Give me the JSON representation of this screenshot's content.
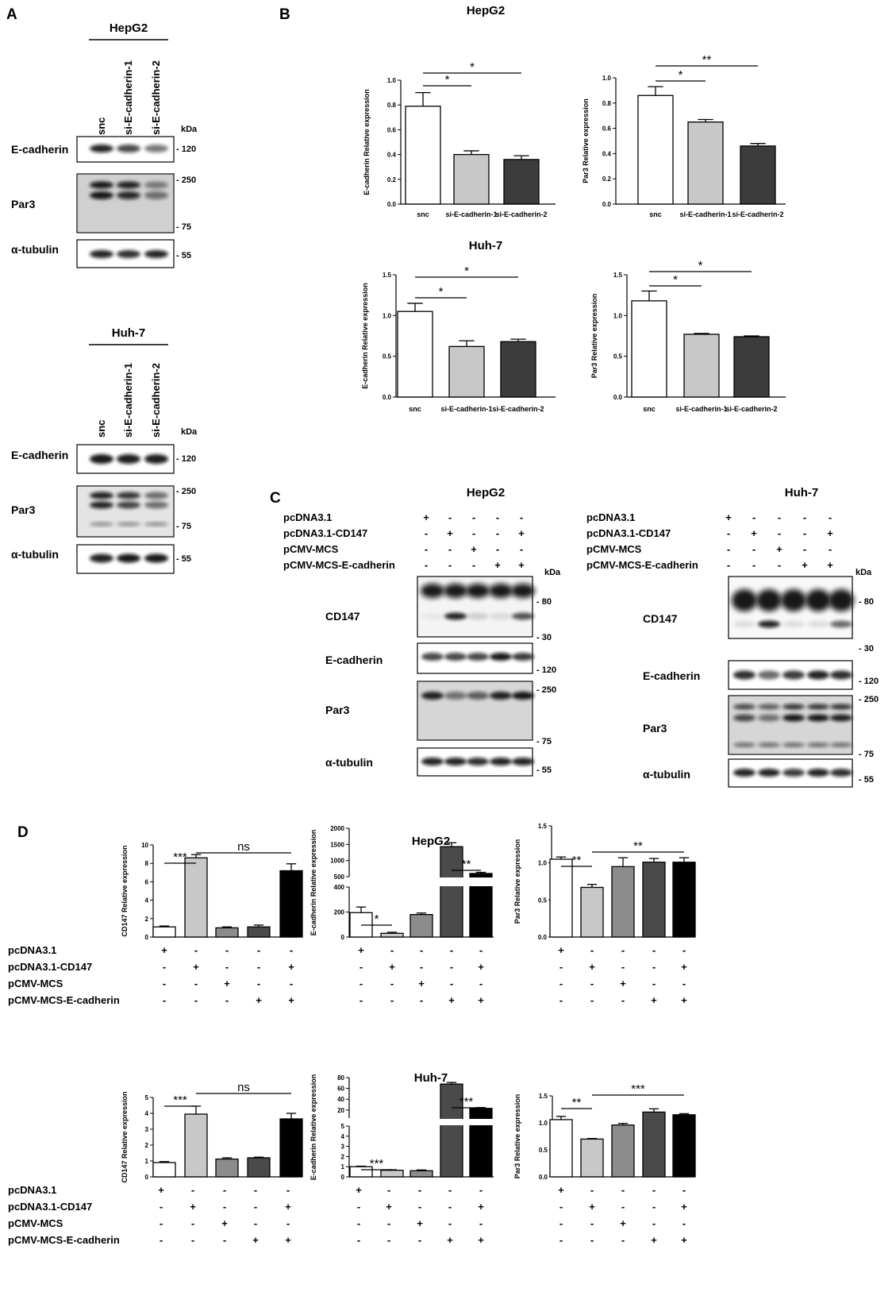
{
  "panel_labels": {
    "A": "A",
    "B": "B",
    "C": "C",
    "D": "D"
  },
  "kda_label": "kDa",
  "panel_a": {
    "hepg2": {
      "cell_line": "HepG2",
      "lanes": [
        "snc",
        "si-E-cadherin-1",
        "si-E-cadherin-2"
      ],
      "rows": [
        {
          "label": "E-cadherin",
          "markers": [
            "- 120"
          ]
        },
        {
          "label": "Par3",
          "markers": [
            "- 250",
            "- 75"
          ]
        },
        {
          "label": "α-tubulin",
          "markers": [
            "- 55"
          ]
        }
      ]
    },
    "huh7": {
      "cell_line": "Huh-7",
      "lanes": [
        "snc",
        "si-E-cadherin-1",
        "si-E-cadherin-2"
      ],
      "rows": [
        {
          "label": "E-cadherin",
          "markers": [
            "- 120"
          ]
        },
        {
          "label": "Par3",
          "markers": [
            "- 250",
            "- 75"
          ]
        },
        {
          "label": "α-tubulin",
          "markers": [
            "- 55"
          ]
        }
      ]
    }
  },
  "panel_b": {
    "hepg2_title": "HepG2",
    "huh7_title": "Huh-7"
  },
  "panel_c": {
    "conditions": [
      "pcDNA3.1",
      "pcDNA3.1-CD147",
      "pCMV-MCS",
      "pCMV-MCS-E-cadherin"
    ],
    "signs": [
      [
        "+",
        "-",
        "-",
        "-",
        "-"
      ],
      [
        "-",
        "+",
        "-",
        "-",
        "+"
      ],
      [
        "-",
        "-",
        "+",
        "-",
        "-"
      ],
      [
        "-",
        "-",
        "-",
        "+",
        "+"
      ]
    ],
    "hepg2": {
      "cell_line": "HepG2",
      "rows": [
        {
          "label": "CD147",
          "markers": [
            "- 80",
            "- 30"
          ]
        },
        {
          "label": "E-cadherin",
          "markers": [
            "- 120"
          ]
        },
        {
          "label": "Par3",
          "markers": [
            "- 250",
            "- 75"
          ]
        },
        {
          "label": "α-tubulin",
          "markers": [
            "- 55"
          ]
        }
      ]
    },
    "huh7": {
      "cell_line": "Huh-7",
      "rows": [
        {
          "label": "CD147",
          "markers": [
            "- 80",
            "- 30"
          ]
        },
        {
          "label": "E-cadherin",
          "markers": [
            "- 120"
          ]
        },
        {
          "label": "Par3",
          "markers": [
            "- 250",
            "- 75"
          ]
        },
        {
          "label": "α-tubulin",
          "markers": [
            "- 55"
          ]
        }
      ]
    }
  },
  "panel_d": {
    "hepg2_title": "HepG2",
    "huh7_title": "Huh-7",
    "conditions": [
      "pcDNA3.1",
      "pcDNA3.1-CD147",
      "pCMV-MCS",
      "pCMV-MCS-E-cadherin"
    ],
    "signs": [
      [
        "+",
        "-",
        "-",
        "-",
        "-"
      ],
      [
        "-",
        "+",
        "-",
        "-",
        "+"
      ],
      [
        "-",
        "-",
        "+",
        "-",
        "-"
      ],
      [
        "-",
        "-",
        "-",
        "+",
        "+"
      ]
    ]
  },
  "chart_data": [
    {
      "type": "bar",
      "panel": "B",
      "cell_line": "HepG2",
      "categories": [
        "snc",
        "si-E-cadherin-1",
        "si-E-cadherin-2"
      ],
      "values": [
        0.79,
        0.4,
        0.36
      ],
      "errors": [
        0.11,
        0.03,
        0.03
      ],
      "colors": [
        "#ffffff",
        "#c8c8c8",
        "#3c3c3c"
      ],
      "ylabel": "E-cadherin Relative expression",
      "ylim": [
        0,
        1.0
      ],
      "yticks": [
        "0.0",
        "0.2",
        "0.4",
        "0.6",
        "0.8",
        "1.0"
      ],
      "significance": [
        {
          "from": 0,
          "to": 1,
          "label": "*"
        },
        {
          "from": 0,
          "to": 2,
          "label": "*"
        }
      ]
    },
    {
      "type": "bar",
      "panel": "B",
      "cell_line": "HepG2",
      "categories": [
        "snc",
        "si-E-cadherin-1",
        "si-E-cadherin-2"
      ],
      "values": [
        0.86,
        0.65,
        0.46
      ],
      "errors": [
        0.07,
        0.02,
        0.02
      ],
      "colors": [
        "#ffffff",
        "#c8c8c8",
        "#3c3c3c"
      ],
      "ylabel": "Par3 Relative expression",
      "ylim": [
        0,
        1.0
      ],
      "yticks": [
        "0.0",
        "0.2",
        "0.4",
        "0.6",
        "0.8",
        "1.0"
      ],
      "significance": [
        {
          "from": 0,
          "to": 1,
          "label": "*"
        },
        {
          "from": 0,
          "to": 2,
          "label": "**"
        }
      ]
    },
    {
      "type": "bar",
      "panel": "B",
      "cell_line": "Huh-7",
      "categories": [
        "snc",
        "si-E-cadherin-1",
        "si-E-cadherin-2"
      ],
      "values": [
        1.05,
        0.62,
        0.68
      ],
      "errors": [
        0.1,
        0.07,
        0.03
      ],
      "colors": [
        "#ffffff",
        "#c8c8c8",
        "#3c3c3c"
      ],
      "ylabel": "E-cadherin Relative expression",
      "ylim": [
        0,
        1.5
      ],
      "yticks": [
        "0.0",
        "0.5",
        "1.0",
        "1.5"
      ],
      "significance": [
        {
          "from": 0,
          "to": 1,
          "label": "*"
        },
        {
          "from": 0,
          "to": 2,
          "label": "*"
        }
      ]
    },
    {
      "type": "bar",
      "panel": "B",
      "cell_line": "Huh-7",
      "categories": [
        "snc",
        "si-E-cadherin-1",
        "si-E-cadherin-2"
      ],
      "values": [
        1.18,
        0.77,
        0.74
      ],
      "errors": [
        0.12,
        0.01,
        0.01
      ],
      "colors": [
        "#ffffff",
        "#c8c8c8",
        "#3c3c3c"
      ],
      "ylabel": "Par3 Relative expression",
      "ylim": [
        0,
        1.5
      ],
      "yticks": [
        "0.0",
        "0.5",
        "1.0",
        "1.5"
      ],
      "significance": [
        {
          "from": 0,
          "to": 1,
          "label": "*"
        },
        {
          "from": 0,
          "to": 2,
          "label": "*"
        }
      ]
    },
    {
      "type": "bar",
      "panel": "D",
      "cell_line": "HepG2",
      "values": [
        1.1,
        8.6,
        1.0,
        1.1,
        7.2
      ],
      "errors": [
        0.1,
        0.35,
        0.1,
        0.2,
        0.75
      ],
      "colors": [
        "#ffffff",
        "#c8c8c8",
        "#8c8c8c",
        "#4a4a4a",
        "#000000"
      ],
      "ylabel": "CD147 Relative expression",
      "ylim": [
        0,
        10
      ],
      "yticks": [
        "0",
        "2",
        "4",
        "6",
        "8",
        "10"
      ],
      "significance": [
        {
          "from": 0,
          "to": 1,
          "label": "***"
        },
        {
          "from": 1,
          "to": 4,
          "label": "ns"
        }
      ]
    },
    {
      "type": "bar",
      "panel": "D",
      "cell_line": "HepG2",
      "broken_axis": true,
      "values": [
        195,
        30,
        180,
        1430,
        600
      ],
      "errors": [
        45,
        8,
        12,
        120,
        35
      ],
      "colors": [
        "#ffffff",
        "#c8c8c8",
        "#8c8c8c",
        "#4a4a4a",
        "#000000"
      ],
      "ylabel": "E-cadherin Relative expression",
      "lower_ylim": [
        0,
        400
      ],
      "upper_ylim": [
        500,
        2000
      ],
      "yticks": [
        "0",
        "200",
        "400",
        "500",
        "1000",
        "1500",
        "2000"
      ],
      "significance": [
        {
          "from": 0,
          "to": 1,
          "label": "*"
        },
        {
          "from": 3,
          "to": 4,
          "label": "**"
        }
      ]
    },
    {
      "type": "bar",
      "panel": "D",
      "cell_line": "HepG2",
      "values": [
        1.05,
        0.67,
        0.95,
        1.01,
        1.01
      ],
      "errors": [
        0.03,
        0.04,
        0.12,
        0.05,
        0.06
      ],
      "colors": [
        "#ffffff",
        "#c8c8c8",
        "#8c8c8c",
        "#4a4a4a",
        "#000000"
      ],
      "ylabel": "Par3 Relative expression",
      "ylim": [
        0,
        1.5
      ],
      "yticks": [
        "0.0",
        "0.5",
        "1.0",
        "1.5"
      ],
      "significance": [
        {
          "from": 0,
          "to": 1,
          "label": "**"
        },
        {
          "from": 1,
          "to": 4,
          "label": "**"
        }
      ]
    },
    {
      "type": "bar",
      "panel": "D",
      "cell_line": "Huh-7",
      "values": [
        0.9,
        3.95,
        1.12,
        1.2,
        3.65
      ],
      "errors": [
        0.06,
        0.5,
        0.08,
        0.04,
        0.35
      ],
      "colors": [
        "#ffffff",
        "#c8c8c8",
        "#8c8c8c",
        "#4a4a4a",
        "#000000"
      ],
      "ylabel": "CD147 Relative expression",
      "ylim": [
        0,
        5
      ],
      "yticks": [
        "0",
        "1",
        "2",
        "3",
        "4",
        "5"
      ],
      "significance": [
        {
          "from": 0,
          "to": 1,
          "label": "***"
        },
        {
          "from": 1,
          "to": 4,
          "label": "ns"
        }
      ]
    },
    {
      "type": "bar",
      "panel": "D",
      "cell_line": "Huh-7",
      "broken_axis": true,
      "values": [
        1.0,
        0.65,
        0.6,
        68,
        23
      ],
      "errors": [
        0.05,
        0.05,
        0.08,
        3,
        1.5
      ],
      "colors": [
        "#ffffff",
        "#c8c8c8",
        "#8c8c8c",
        "#4a4a4a",
        "#000000"
      ],
      "ylabel": "E-cadherin Relative expression",
      "lower_ylim": [
        0,
        5
      ],
      "upper_ylim": [
        5,
        80
      ],
      "yticks": [
        "0",
        "1",
        "2",
        "3",
        "4",
        "5",
        "20",
        "40",
        "60",
        "80"
      ],
      "significance": [
        {
          "from": 0,
          "to": 1,
          "label": "***"
        },
        {
          "from": 3,
          "to": 4,
          "label": "***"
        }
      ]
    },
    {
      "type": "bar",
      "panel": "D",
      "cell_line": "Huh-7",
      "values": [
        1.06,
        0.7,
        0.96,
        1.2,
        1.15
      ],
      "errors": [
        0.06,
        0.01,
        0.03,
        0.06,
        0.02
      ],
      "colors": [
        "#ffffff",
        "#c8c8c8",
        "#8c8c8c",
        "#4a4a4a",
        "#000000"
      ],
      "ylabel": "Par3 Relative expression",
      "ylim": [
        0,
        1.5
      ],
      "yticks": [
        "0.0",
        "0.5",
        "1.0",
        "1.5"
      ],
      "significance": [
        {
          "from": 0,
          "to": 1,
          "label": "**"
        },
        {
          "from": 1,
          "to": 4,
          "label": "***"
        }
      ]
    }
  ]
}
